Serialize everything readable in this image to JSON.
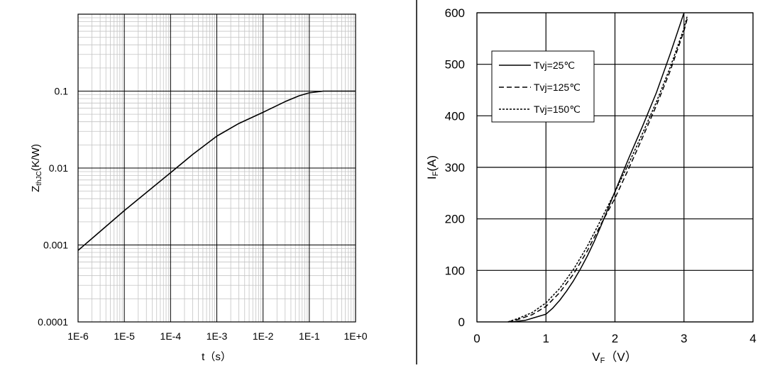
{
  "chart_data": [
    {
      "type": "line",
      "xlabel": "t（s）",
      "ylabel": "Z",
      "ylabel_sub": "thJC",
      "ylabel_suffix": "(K/W)",
      "xscale": "log",
      "yscale": "log",
      "xlim": [
        1e-06,
        1
      ],
      "ylim": [
        0.0001,
        1
      ],
      "grid": true,
      "x_tick_labels": [
        "1E-6",
        "1E-5",
        "1E-4",
        "1E-3",
        "1E-2",
        "1E-1",
        "1E+0"
      ],
      "y_tick_labels": [
        "0.0001",
        "0.001",
        "0.01",
        "0.1"
      ],
      "series": [
        {
          "color": "#000000",
          "x": [
            1e-06,
            1e-05,
            0.0001,
            0.0003,
            0.001,
            0.003,
            0.01,
            0.03,
            0.06,
            0.1,
            0.2,
            0.5,
            1
          ],
          "y": [
            0.00085,
            0.0028,
            0.0087,
            0.015,
            0.026,
            0.038,
            0.053,
            0.073,
            0.087,
            0.095,
            0.1,
            0.1,
            0.1
          ]
        }
      ]
    },
    {
      "type": "line",
      "xlabel": "V",
      "xlabel_sub": "F",
      "xlabel_suffix": "（V）",
      "ylabel": "I",
      "ylabel_sub": "F",
      "ylabel_suffix": "(A)",
      "xlim": [
        0,
        4
      ],
      "ylim": [
        0,
        600
      ],
      "grid": true,
      "x_tick_labels": [
        "0",
        "1",
        "2",
        "3",
        "4"
      ],
      "y_tick_labels": [
        "0",
        "100",
        "200",
        "300",
        "400",
        "500",
        "600"
      ],
      "legend_position": "top-left",
      "series": [
        {
          "name": "Tvj=25℃",
          "dash": "solid",
          "x": [
            0.5,
            0.7,
            0.8,
            0.9,
            1.0,
            1.1,
            1.2,
            1.3,
            1.4,
            1.5,
            1.6,
            1.7,
            1.8,
            1.9,
            2.0,
            2.2,
            2.4,
            2.6,
            2.8,
            3.0
          ],
          "y": [
            0,
            3,
            7,
            11,
            15,
            27,
            42,
            60,
            80,
            103,
            128,
            156,
            187,
            220,
            253,
            318,
            380,
            445,
            520,
            600
          ]
        },
        {
          "name": "Tvj=125℃",
          "dash": "dashed",
          "x": [
            0.45,
            0.6,
            0.8,
            1.0,
            1.2,
            1.4,
            1.6,
            1.8,
            2.0,
            2.2,
            2.4,
            2.6,
            2.8,
            3.0,
            3.05
          ],
          "y": [
            0,
            5,
            14,
            30,
            57,
            93,
            138,
            190,
            240,
            298,
            358,
            420,
            487,
            565,
            590
          ]
        },
        {
          "name": "Tvj=150℃",
          "dash": "dotted",
          "x": [
            0.45,
            0.6,
            0.8,
            1.0,
            1.2,
            1.4,
            1.6,
            1.8,
            2.0,
            2.2,
            2.4,
            2.6,
            2.8,
            3.0,
            3.05
          ],
          "y": [
            0,
            7,
            18,
            37,
            65,
            102,
            147,
            199,
            252,
            308,
            366,
            427,
            494,
            570,
            595
          ]
        }
      ]
    }
  ]
}
